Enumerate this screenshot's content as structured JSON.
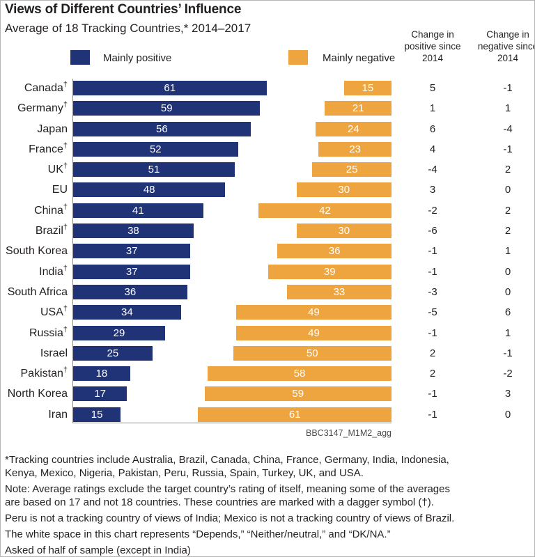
{
  "header": {
    "title": "Views of Different Countries’ Influence",
    "subtitle": "Average of 18 Tracking Countries,* 2014–2017"
  },
  "source_label": "BBC3147_M1M2_agg",
  "chart_data": {
    "type": "bar",
    "orientation": "horizontal",
    "dagger_symbol": "†",
    "categories": [
      {
        "label": "Canada",
        "dagger": true
      },
      {
        "label": "Germany",
        "dagger": true
      },
      {
        "label": "Japan",
        "dagger": false
      },
      {
        "label": "France",
        "dagger": true
      },
      {
        "label": "UK",
        "dagger": true
      },
      {
        "label": "EU",
        "dagger": false
      },
      {
        "label": "China",
        "dagger": true
      },
      {
        "label": "Brazil",
        "dagger": true
      },
      {
        "label": "South Korea",
        "dagger": false
      },
      {
        "label": "India",
        "dagger": true
      },
      {
        "label": "South Africa",
        "dagger": false
      },
      {
        "label": "USA",
        "dagger": true
      },
      {
        "label": "Russia",
        "dagger": true
      },
      {
        "label": "Israel",
        "dagger": false
      },
      {
        "label": "Pakistan",
        "dagger": true
      },
      {
        "label": "North Korea",
        "dagger": false
      },
      {
        "label": "Iran",
        "dagger": false
      }
    ],
    "series": [
      {
        "name": "Mainly positive",
        "color": "#203377",
        "values": [
          61,
          59,
          56,
          52,
          51,
          48,
          41,
          38,
          37,
          37,
          36,
          34,
          29,
          25,
          18,
          17,
          15
        ]
      },
      {
        "name": "Mainly negative",
        "color": "#EFA53F",
        "values": [
          15,
          21,
          24,
          23,
          25,
          30,
          42,
          30,
          36,
          39,
          33,
          49,
          49,
          50,
          58,
          59,
          61
        ]
      }
    ],
    "change_columns": [
      {
        "header": "Change in positive since 2014",
        "values": [
          5,
          1,
          6,
          4,
          -4,
          3,
          -2,
          -6,
          -1,
          -1,
          -3,
          -5,
          -1,
          2,
          2,
          -1,
          -1
        ]
      },
      {
        "header": "Change in negative since 2014",
        "values": [
          -1,
          1,
          -4,
          -1,
          2,
          0,
          2,
          2,
          1,
          0,
          0,
          6,
          1,
          -1,
          -2,
          3,
          0
        ]
      }
    ],
    "legend_position": "top",
    "grid": false
  },
  "footnotes": [
    "*Tracking countries include Australia, Brazil, Canada, China, France, Germany, India, Indonesia, Kenya, Mexico, Nigeria, Pakistan, Peru, Russia, Spain, Turkey, UK, and USA.",
    "Note: Average ratings exclude the target country’s rating of itself, meaning some of the averages are based on 17 and not 18 countries. These countries are marked with a dagger symbol (†).",
    "Peru is not a tracking country of views of India; Mexico is not a tracking country of views of Brazil.",
    "The white space in this chart represents “Depends,” “Neither/neutral,” and “DK/NA.”",
    "Asked of half of sample (except in India)"
  ]
}
